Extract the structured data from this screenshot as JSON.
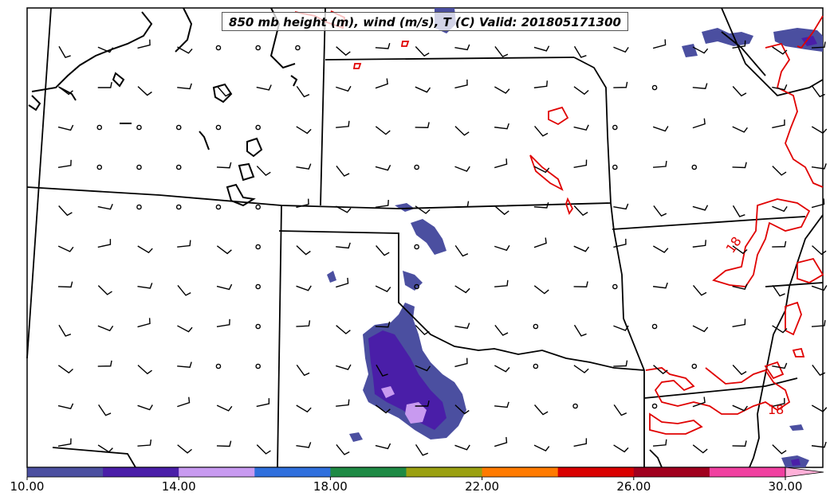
{
  "title": "850 mb height (m), wind (m/s), T (C) Valid: 201805171300",
  "colorbar": {
    "colors": [
      "#4b4fa0",
      "#4a1ea8",
      "#c89af0",
      "#2f6fdd",
      "#1e8a44",
      "#9aa010",
      "#ff7a00",
      "#d90000",
      "#a0001e",
      "#f040a0",
      "#ffb0d8"
    ],
    "tick_labels": [
      "10.00",
      "14.00",
      "18.00",
      "22.00",
      "26.00",
      "30.00"
    ],
    "tick_values": [
      10,
      14,
      18,
      22,
      26,
      30
    ],
    "range": [
      10,
      31
    ]
  },
  "contours": {
    "temperature_color": "#e00000",
    "labels": [
      "18",
      "18"
    ]
  },
  "colors": {
    "boundary": "#000000",
    "precip_light": "#4b4fa0",
    "precip_mid": "#4a1ea8",
    "precip_heavy": "#c89af0"
  }
}
